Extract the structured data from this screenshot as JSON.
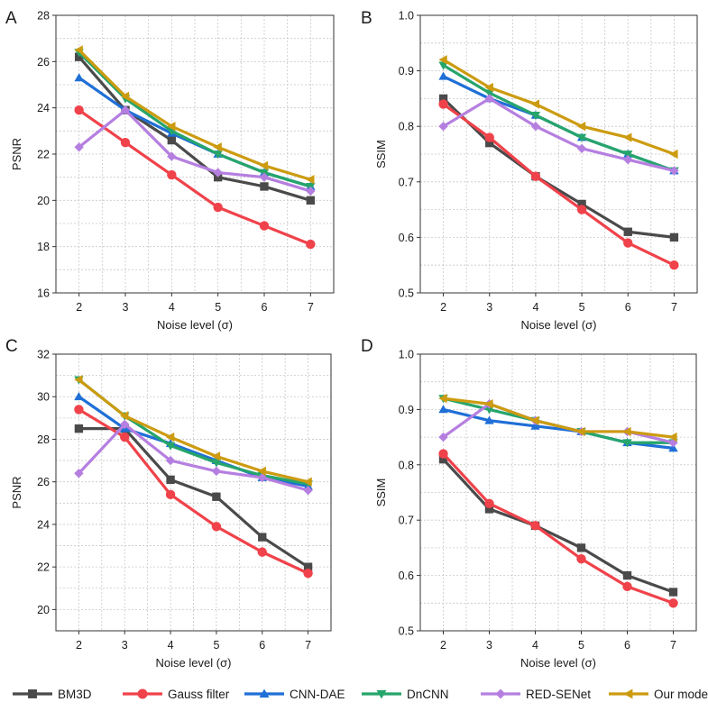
{
  "chart_data": [
    {
      "type": "line",
      "panel": "A",
      "title": "",
      "xlabel": "Noise level (σ)",
      "ylabel": "PSNR",
      "x": [
        2,
        3,
        4,
        5,
        6,
        7
      ],
      "xticks": [
        "2",
        "3",
        "4",
        "5",
        "6",
        "7"
      ],
      "ylim": [
        16,
        28
      ],
      "yticks": [
        "16",
        "18",
        "20",
        "22",
        "24",
        "26",
        "28"
      ],
      "grid": true,
      "series": [
        {
          "name": "BM3D",
          "values": [
            26.2,
            23.9,
            22.6,
            21.0,
            20.6,
            20.0
          ]
        },
        {
          "name": "Gauss filter",
          "values": [
            23.9,
            22.5,
            21.1,
            19.7,
            18.9,
            18.1
          ]
        },
        {
          "name": "CNN-DAE",
          "values": [
            25.3,
            23.9,
            22.9,
            22.0,
            21.2,
            20.6
          ]
        },
        {
          "name": "DnCNN",
          "values": [
            26.4,
            24.4,
            23.0,
            22.0,
            21.2,
            20.6
          ]
        },
        {
          "name": "RED-SENet",
          "values": [
            22.3,
            23.9,
            21.9,
            21.2,
            21.0,
            20.4
          ]
        },
        {
          "name": "Our model",
          "values": [
            26.5,
            24.5,
            23.2,
            22.3,
            21.5,
            20.9
          ]
        }
      ]
    },
    {
      "type": "line",
      "panel": "B",
      "title": "",
      "xlabel": "Noise level (σ)",
      "ylabel": "SSIM",
      "x": [
        2,
        3,
        4,
        5,
        6,
        7
      ],
      "xticks": [
        "2",
        "3",
        "4",
        "5",
        "6",
        "7"
      ],
      "ylim": [
        0.5,
        1.0
      ],
      "yticks": [
        "0.5",
        "0.6",
        "0.7",
        "0.8",
        "0.9",
        "1.0"
      ],
      "grid": true,
      "series": [
        {
          "name": "BM3D",
          "values": [
            0.85,
            0.77,
            0.71,
            0.66,
            0.61,
            0.6
          ]
        },
        {
          "name": "Gauss filter",
          "values": [
            0.84,
            0.78,
            0.71,
            0.65,
            0.59,
            0.55
          ]
        },
        {
          "name": "CNN-DAE",
          "values": [
            0.89,
            0.85,
            0.82,
            0.78,
            0.75,
            0.72
          ]
        },
        {
          "name": "DnCNN",
          "values": [
            0.91,
            0.86,
            0.82,
            0.78,
            0.75,
            0.72
          ]
        },
        {
          "name": "RED-SENet",
          "values": [
            0.8,
            0.85,
            0.8,
            0.76,
            0.74,
            0.72
          ]
        },
        {
          "name": "Our model",
          "values": [
            0.92,
            0.87,
            0.84,
            0.8,
            0.78,
            0.75
          ]
        }
      ]
    },
    {
      "type": "line",
      "panel": "C",
      "title": "",
      "xlabel": "Noise level (σ)",
      "ylabel": "PSNR",
      "x": [
        2,
        3,
        4,
        5,
        6,
        7
      ],
      "xticks": [
        "2",
        "3",
        "4",
        "5",
        "6",
        "7"
      ],
      "ylim": [
        19,
        32
      ],
      "yticks": [
        "20",
        "22",
        "24",
        "26",
        "28",
        "30",
        "32"
      ],
      "grid": true,
      "series": [
        {
          "name": "BM3D",
          "values": [
            28.5,
            28.5,
            26.1,
            25.3,
            23.4,
            22.0
          ]
        },
        {
          "name": "Gauss filter",
          "values": [
            29.4,
            28.1,
            25.4,
            23.9,
            22.7,
            21.7
          ]
        },
        {
          "name": "CNN-DAE",
          "values": [
            30.0,
            28.5,
            27.8,
            27.0,
            26.2,
            25.8
          ]
        },
        {
          "name": "DnCNN",
          "values": [
            30.8,
            29.1,
            27.7,
            26.9,
            26.3,
            25.9
          ]
        },
        {
          "name": "RED-SENet",
          "values": [
            26.4,
            28.7,
            27.0,
            26.5,
            26.2,
            25.6
          ]
        },
        {
          "name": "Our model",
          "values": [
            30.8,
            29.1,
            28.1,
            27.2,
            26.5,
            26.0
          ]
        }
      ]
    },
    {
      "type": "line",
      "panel": "D",
      "title": "",
      "xlabel": "Noise level (σ)",
      "ylabel": "SSIM",
      "x": [
        2,
        3,
        4,
        5,
        6,
        7
      ],
      "xticks": [
        "2",
        "3",
        "4",
        "5",
        "6",
        "7"
      ],
      "ylim": [
        0.5,
        1.0
      ],
      "yticks": [
        "0.5",
        "0.6",
        "0.7",
        "0.8",
        "0.9",
        "1.0"
      ],
      "grid": true,
      "series": [
        {
          "name": "BM3D",
          "values": [
            0.81,
            0.72,
            0.69,
            0.65,
            0.6,
            0.57
          ]
        },
        {
          "name": "Gauss filter",
          "values": [
            0.82,
            0.73,
            0.69,
            0.63,
            0.58,
            0.55
          ]
        },
        {
          "name": "CNN-DAE",
          "values": [
            0.9,
            0.88,
            0.87,
            0.86,
            0.84,
            0.83
          ]
        },
        {
          "name": "DnCNN",
          "values": [
            0.92,
            0.9,
            0.88,
            0.86,
            0.84,
            0.84
          ]
        },
        {
          "name": "RED-SENet",
          "values": [
            0.85,
            0.91,
            0.88,
            0.86,
            0.86,
            0.84
          ]
        },
        {
          "name": "Our model",
          "values": [
            0.92,
            0.91,
            0.88,
            0.86,
            0.86,
            0.85
          ]
        }
      ]
    }
  ],
  "legend": {
    "position": "bottom",
    "items": [
      {
        "name": "BM3D",
        "color": "#4a4a4a",
        "marker": "square"
      },
      {
        "name": "Gauss filter",
        "color": "#f0424a",
        "marker": "circle"
      },
      {
        "name": "CNN-DAE",
        "color": "#1f6fd6",
        "marker": "triangle-up"
      },
      {
        "name": "DnCNN",
        "color": "#26a56b",
        "marker": "triangle-down"
      },
      {
        "name": "RED-SENet",
        "color": "#b57fe0",
        "marker": "diamond"
      },
      {
        "name": "Our model",
        "color": "#cc9b10",
        "marker": "triangle-left"
      }
    ]
  }
}
